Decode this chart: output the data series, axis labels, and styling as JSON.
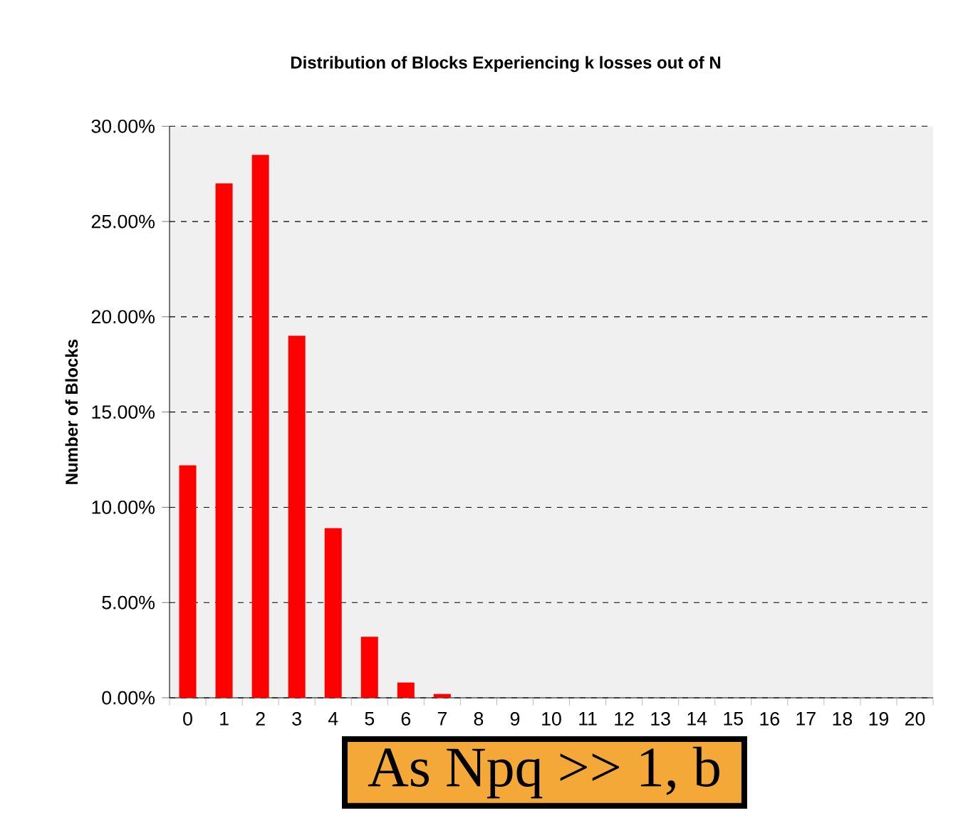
{
  "chart_data": {
    "type": "bar",
    "title": "Distribution of Blocks Experiencing k losses out of N",
    "ylabel": "Number of Blocks",
    "categories": [
      "0",
      "1",
      "2",
      "3",
      "4",
      "5",
      "6",
      "7",
      "8",
      "9",
      "10",
      "11",
      "12",
      "13",
      "14",
      "15",
      "16",
      "17",
      "18",
      "19",
      "20"
    ],
    "values": [
      12.2,
      27.0,
      28.5,
      19.0,
      8.9,
      3.2,
      0.8,
      0.2,
      0,
      0,
      0,
      0,
      0,
      0,
      0,
      0,
      0,
      0,
      0,
      0,
      0
    ],
    "color": "#ff0000",
    "ylim": [
      0,
      30
    ],
    "yticks": [
      {
        "value": 0,
        "label": "0.00%"
      },
      {
        "value": 5,
        "label": "5.00%"
      },
      {
        "value": 10,
        "label": "10.00%"
      },
      {
        "value": 15,
        "label": "15.00%"
      },
      {
        "value": 20,
        "label": "20.00%"
      },
      {
        "value": 25,
        "label": "25.00%"
      },
      {
        "value": 30,
        "label": "30.00%"
      }
    ],
    "grid": "y",
    "annotations": [
      "As Npq >> 1, b"
    ]
  }
}
